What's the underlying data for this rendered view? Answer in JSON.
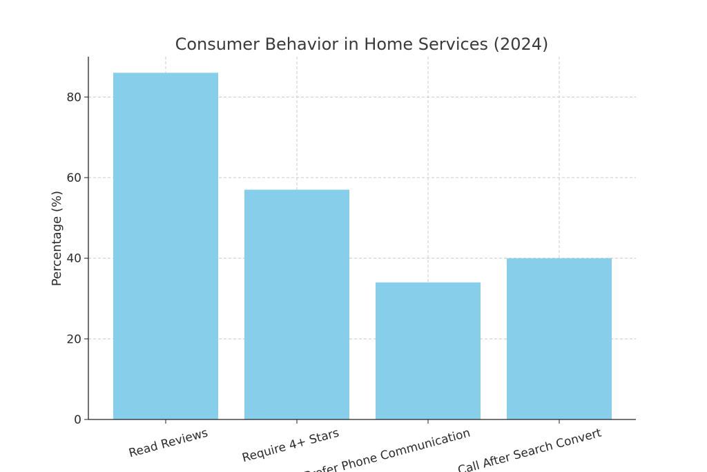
{
  "chart_data": {
    "type": "bar",
    "title": "Consumer Behavior in Home Services (2024)",
    "xlabel": "",
    "ylabel": "Percentage (%)",
    "categories": [
      "Read Reviews",
      "Require 4+ Stars",
      "Prefer Phone Communication",
      "Call After Search Convert"
    ],
    "values": [
      86,
      57,
      34,
      40
    ],
    "ylim": [
      0,
      90
    ],
    "yticks": [
      0,
      20,
      40,
      60,
      80
    ],
    "bar_color": "#87ceeb",
    "grid": true,
    "x_tick_rotation": -15
  }
}
